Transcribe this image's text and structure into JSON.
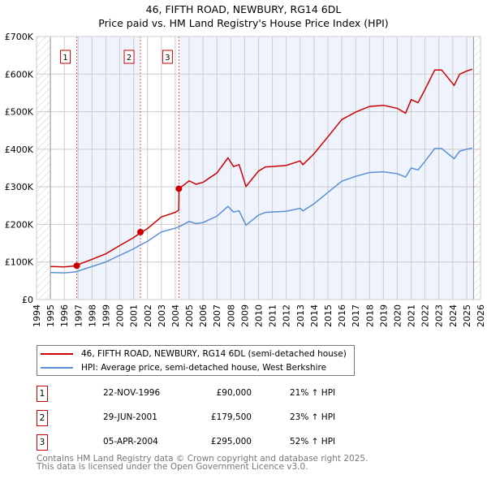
{
  "title": "46, FIFTH ROAD, NEWBURY, RG14 6DL",
  "subtitle": "Price paid vs. HM Land Registry's House Price Index (HPI)",
  "chart_data": {
    "type": "line",
    "title": "46, FIFTH ROAD, NEWBURY, RG14 6DL — Price paid vs. HM Land Registry's House Price Index (HPI)",
    "xlim": [
      1994,
      2026
    ],
    "ylim": [
      0,
      700000
    ],
    "x_ticks": [
      "1994",
      "1995",
      "1996",
      "1997",
      "1998",
      "1999",
      "2000",
      "2001",
      "2002",
      "2003",
      "2004",
      "2005",
      "2006",
      "2007",
      "2008",
      "2009",
      "2010",
      "2011",
      "2012",
      "2013",
      "2014",
      "2015",
      "2016",
      "2017",
      "2018",
      "2019",
      "2020",
      "2021",
      "2022",
      "2023",
      "2024",
      "2025",
      "2026"
    ],
    "y_ticks": [
      {
        "v": 0,
        "label": "£0"
      },
      {
        "v": 100000,
        "label": "£100K"
      },
      {
        "v": 200000,
        "label": "£200K"
      },
      {
        "v": 300000,
        "label": "£300K"
      },
      {
        "v": 400000,
        "label": "£400K"
      },
      {
        "v": 500000,
        "label": "£500K"
      },
      {
        "v": 600000,
        "label": "£600K"
      },
      {
        "v": 700000,
        "label": "£700K"
      }
    ],
    "grid": true,
    "data_range": [
      1995,
      2025.5
    ],
    "series": [
      {
        "name": "46, FIFTH ROAD, NEWBURY, RG14 6DL (semi-detached house)",
        "color": "#cc0000",
        "x": [
          1995,
          1996,
          1996.9,
          1997,
          1998,
          1999,
          2000,
          2001,
          2001.5,
          2002,
          2003,
          2004,
          2004.25,
          2004.27,
          2005,
          2005.5,
          2006,
          2007,
          2007.8,
          2008.2,
          2008.6,
          2009.1,
          2010,
          2010.5,
          2011,
          2012,
          2013,
          2013.2,
          2014,
          2015,
          2016,
          2017,
          2018,
          2019,
          2020,
          2020.6,
          2021,
          2021.5,
          2022,
          2022.7,
          2023.2,
          2024.1,
          2024.5,
          2025,
          2025.4
        ],
        "y": [
          88000,
          87000,
          90000,
          93000,
          107000,
          122000,
          144000,
          165000,
          178000,
          189000,
          220000,
          232000,
          238000,
          295000,
          316000,
          307000,
          312000,
          337000,
          377000,
          354000,
          359000,
          301000,
          342000,
          353000,
          354000,
          357000,
          369000,
          359000,
          388000,
          433000,
          479000,
          499000,
          514000,
          517000,
          509000,
          496000,
          532000,
          524000,
          559000,
          611000,
          611000,
          570000,
          600000,
          608000,
          613000
        ]
      },
      {
        "name": "HPI: Average price, semi-detached house, West Berkshire",
        "color": "#5b8fd6",
        "x": [
          1995,
          1996,
          1996.9,
          1997,
          1998,
          1999,
          2000,
          2001,
          2001.5,
          2002,
          2003,
          2004,
          2004.3,
          2005,
          2005.5,
          2006,
          2007,
          2007.8,
          2008.2,
          2008.6,
          2009.1,
          2010,
          2010.5,
          2011,
          2012,
          2013,
          2013.2,
          2014,
          2015,
          2016,
          2017,
          2018,
          2019,
          2020,
          2020.6,
          2021,
          2021.5,
          2022,
          2022.7,
          2023.2,
          2024.1,
          2024.5,
          2025,
          2025.4
        ],
        "y": [
          72000,
          71000,
          74000,
          76000,
          88000,
          100000,
          118000,
          135000,
          146000,
          155000,
          180000,
          190000,
          194000,
          208000,
          202000,
          205000,
          222000,
          248000,
          233000,
          236000,
          198000,
          225000,
          232000,
          233000,
          235000,
          243000,
          236000,
          255000,
          285000,
          315000,
          328000,
          338000,
          340000,
          335000,
          326000,
          350000,
          345000,
          368000,
          402000,
          402000,
          375000,
          395000,
          400000,
          403000
        ]
      }
    ],
    "sales": [
      {
        "n": "1",
        "x": 1996.9,
        "y": 90000,
        "date": "22-NOV-1996",
        "price": "£90,000",
        "hpi": "21% ↑ HPI"
      },
      {
        "n": "2",
        "x": 2001.49,
        "y": 179500,
        "date": "29-JUN-2001",
        "price": "£179,500",
        "hpi": "23% ↑ HPI"
      },
      {
        "n": "3",
        "x": 2004.26,
        "y": 295000,
        "date": "05-APR-2004",
        "price": "£295,000",
        "hpi": "52% ↑ HPI"
      }
    ],
    "legend": "bottom"
  },
  "footer": [
    "Contains HM Land Registry data © Crown copyright and database right 2025.",
    "This data is licensed under the Open Government Licence v3.0."
  ]
}
